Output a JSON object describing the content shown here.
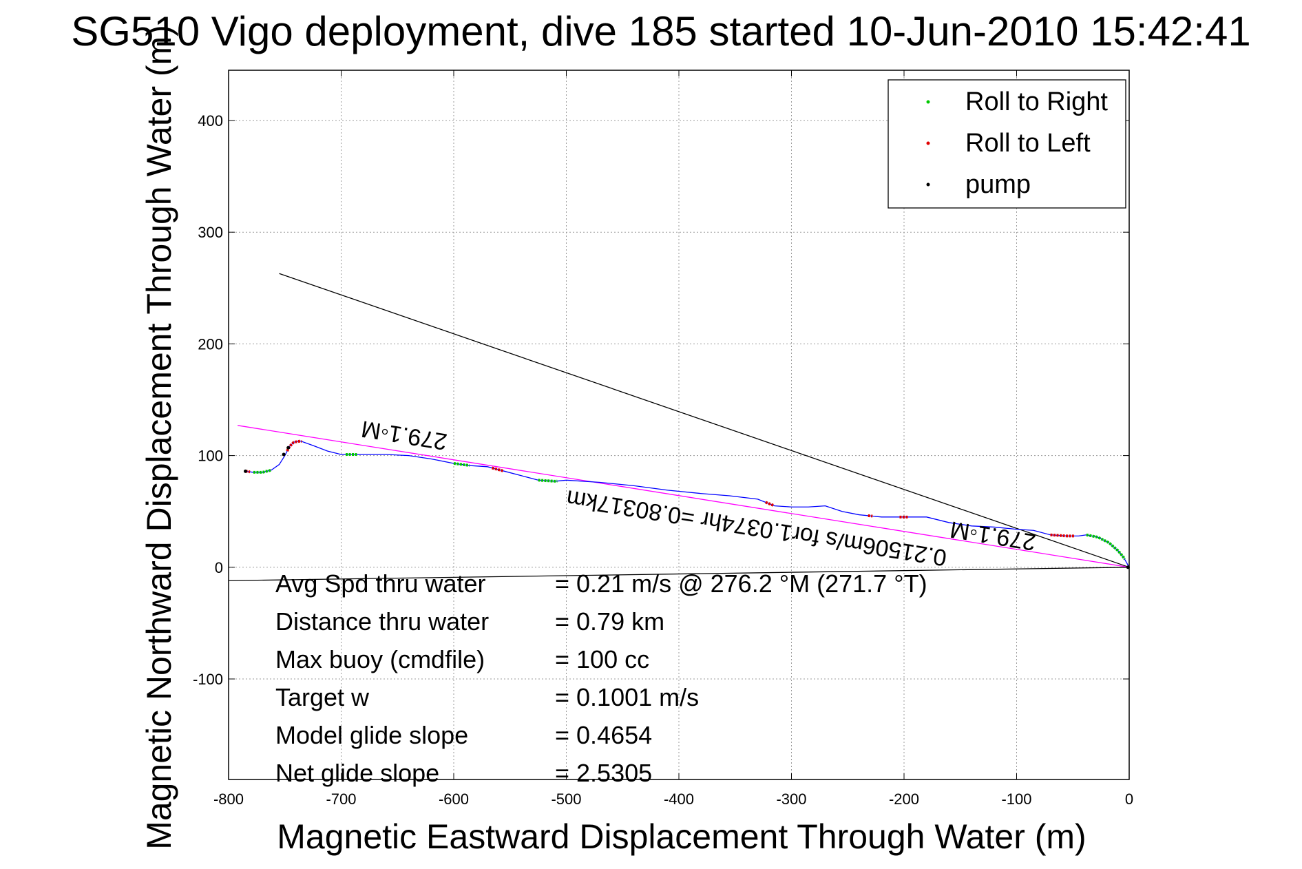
{
  "chart_data": {
    "type": "line",
    "title": "SG510 Vigo deployment, dive 185 started 10-Jun-2010 15:42:41",
    "xlabel": "Magnetic Eastward Displacement Through Water (m)",
    "ylabel": "Magnetic Northward Displacement Through Water (m)",
    "xlim": [
      -800,
      0
    ],
    "ylim": [
      -190,
      445
    ],
    "xticks": [
      -800,
      -700,
      -600,
      -500,
      -400,
      -300,
      -200,
      -100,
      0
    ],
    "yticks": [
      -100,
      0,
      100,
      200,
      300,
      400
    ],
    "grid": true,
    "legend_position": "top-right",
    "legend": [
      {
        "label": "Roll to Right",
        "color": "#00c800"
      },
      {
        "label": "Roll to Left",
        "color": "#e00000"
      },
      {
        "label": "pump",
        "color": "#000000"
      }
    ],
    "track": {
      "color": "#0000ff",
      "points": [
        [
          -785,
          86
        ],
        [
          -778,
          85
        ],
        [
          -770,
          85
        ],
        [
          -762,
          87
        ],
        [
          -755,
          92
        ],
        [
          -750,
          100
        ],
        [
          -746,
          108
        ],
        [
          -742,
          112
        ],
        [
          -736,
          113
        ],
        [
          -725,
          109
        ],
        [
          -712,
          104
        ],
        [
          -700,
          101
        ],
        [
          -680,
          101
        ],
        [
          -660,
          101
        ],
        [
          -640,
          100
        ],
        [
          -620,
          97
        ],
        [
          -600,
          93
        ],
        [
          -585,
          91
        ],
        [
          -570,
          90
        ],
        [
          -555,
          86
        ],
        [
          -540,
          82
        ],
        [
          -525,
          78
        ],
        [
          -510,
          77
        ],
        [
          -500,
          78
        ],
        [
          -470,
          76
        ],
        [
          -440,
          73
        ],
        [
          -410,
          69
        ],
        [
          -380,
          66
        ],
        [
          -355,
          64
        ],
        [
          -330,
          61
        ],
        [
          -315,
          55
        ],
        [
          -300,
          54
        ],
        [
          -285,
          54
        ],
        [
          -270,
          55
        ],
        [
          -255,
          50
        ],
        [
          -240,
          47
        ],
        [
          -220,
          45
        ],
        [
          -200,
          45
        ],
        [
          -180,
          45
        ],
        [
          -160,
          40
        ],
        [
          -140,
          37
        ],
        [
          -120,
          36
        ],
        [
          -100,
          34
        ],
        [
          -85,
          33
        ],
        [
          -70,
          29
        ],
        [
          -55,
          28
        ],
        [
          -45,
          28
        ],
        [
          -38,
          29
        ],
        [
          -28,
          27
        ],
        [
          -18,
          22
        ],
        [
          -10,
          15
        ],
        [
          -5,
          9
        ],
        [
          0,
          0
        ]
      ]
    },
    "roll_right_segments": [
      [
        -778,
        -762
      ],
      [
        -696,
        -686
      ],
      [
        -600,
        -586
      ],
      [
        -525,
        -508
      ],
      [
        -38,
        -4
      ]
    ],
    "roll_left_segments": [
      [
        -785,
        -781
      ],
      [
        -748,
        -735
      ],
      [
        -566,
        -556
      ],
      [
        -323,
        -316
      ],
      [
        -232,
        -228
      ],
      [
        -204,
        -196
      ],
      [
        -70,
        -49
      ]
    ],
    "pump_markers": [
      [
        -785,
        86
      ],
      [
        -751,
        101
      ],
      [
        -747,
        107
      ],
      [
        -1,
        0
      ]
    ],
    "lines": [
      {
        "name": "black-diagonal",
        "color": "#000000",
        "x": [
          -755,
          0
        ],
        "y": [
          263,
          0
        ]
      },
      {
        "name": "magenta-heading",
        "color": "#ff00ff",
        "x": [
          -792,
          0
        ],
        "y": [
          127,
          0
        ]
      },
      {
        "name": "black-baseline",
        "color": "#000000",
        "x": [
          -800,
          0
        ],
        "y": [
          -12,
          0
        ]
      }
    ],
    "annotations_rotated": [
      {
        "text": "279.1◦M",
        "x": -643,
        "y": 125,
        "rotation": 189
      },
      {
        "text": "0.2150​6m/s for1.0374hr =0.80317km",
        "x": -330,
        "y": 42,
        "rotation": 189
      },
      {
        "text": "279.1◦M",
        "x": -120,
        "y": 35,
        "rotation": 189
      }
    ],
    "stats": [
      {
        "label": "Avg Spd thru water",
        "value": "=  0.21 m/s @ 276.2 °M (271.7 °T)"
      },
      {
        "label": "Distance thru water",
        "value": "=  0.79 km"
      },
      {
        "label": "Max buoy (cmdfile)",
        "value": "= 100 cc"
      },
      {
        "label": "Target w",
        "value": "= 0.1001 m/s"
      },
      {
        "label": "Model glide slope",
        "value": "= 0.4654"
      },
      {
        "label": "Net glide slope",
        "value": "= 2.5305"
      }
    ]
  }
}
